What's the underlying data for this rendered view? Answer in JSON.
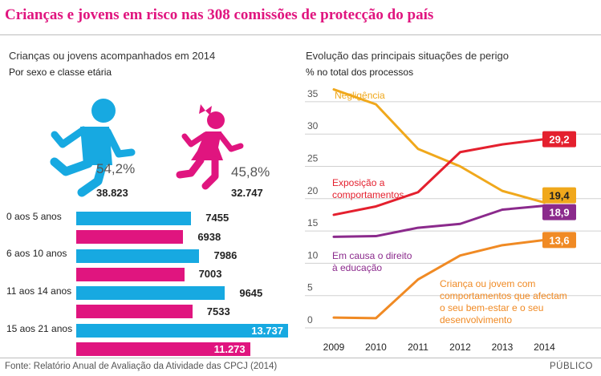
{
  "title": "Crianças e jovens em risco nas 308 comissões de protecção do país",
  "left": {
    "title": "Crianças ou jovens acompanhados em 2014",
    "subtitle": "Por sexo e classe etária",
    "boys": {
      "pct": "54,2%",
      "count": "38.823",
      "icon": "running-boy-icon"
    },
    "girls": {
      "pct": "45,8%",
      "count": "32.747",
      "icon": "running-girl-icon"
    },
    "colors": {
      "boys": "#17a9e1",
      "girls": "#e0157f"
    }
  },
  "right": {
    "title": "Evolução das principais situações de perigo",
    "subtitle": "% no total dos processos"
  },
  "source": "Fonte: Relatório Anual de Avaliação da Atividade das CPCJ (2014)",
  "brand": "PÚBLICO",
  "chart_data": [
    {
      "type": "bar",
      "title": "Crianças ou jovens acompanhados em 2014",
      "subtitle": "Por sexo e classe etária",
      "categories": [
        "0 aos 5 anos",
        "6 aos 10 anos",
        "11 aos 14 anos",
        "15 aos 21 anos"
      ],
      "series": [
        {
          "name": "Rapazes",
          "color": "#17a9e1",
          "values": [
            7455,
            7986,
            9645,
            13737
          ],
          "labels": [
            "7455",
            "7986",
            "9645",
            "13.737"
          ]
        },
        {
          "name": "Raparigas",
          "color": "#e0157f",
          "values": [
            6938,
            7003,
            7533,
            11273
          ],
          "labels": [
            "6938",
            "7003",
            "7533",
            "11.273"
          ]
        }
      ],
      "orientation": "horizontal",
      "xlim": [
        0,
        13737
      ]
    },
    {
      "type": "line",
      "title": "Evolução das principais situações de perigo",
      "ylabel": "% no total dos processos",
      "x": [
        2009,
        2010,
        2011,
        2012,
        2013,
        2014
      ],
      "x_ticks": [
        "2009",
        "2010",
        "2011",
        "2012",
        "2013",
        "2014"
      ],
      "ylim": [
        0,
        37
      ],
      "y_ticks": [
        "0",
        "5",
        "10",
        "15",
        "20",
        "25",
        "30",
        "35"
      ],
      "y_tick_values": [
        0,
        5,
        10,
        15,
        20,
        25,
        30,
        35
      ],
      "series": [
        {
          "name": "Negligência",
          "legend": [
            "Negligência"
          ],
          "color": "#f0a81c",
          "values": [
            36.9,
            34.6,
            27.7,
            25.0,
            21.2,
            19.4
          ],
          "end_label": "19,4"
        },
        {
          "name": "Exposição a comportamentos",
          "legend": [
            "Exposição a",
            "comportamentos"
          ],
          "color": "#e4202e",
          "values": [
            17.5,
            18.8,
            21.0,
            27.2,
            28.4,
            29.2
          ],
          "end_label": "29,2"
        },
        {
          "name": "Em causa o direito à educação",
          "legend": [
            "Em causa o direito",
            "à educação"
          ],
          "color": "#8b2a8c",
          "values": [
            14.1,
            14.2,
            15.5,
            16.1,
            18.3,
            18.9
          ],
          "end_label": "18,9"
        },
        {
          "name": "Criança ou jovem com comportamentos que afectam o seu bem-estar e o seu desenvolvimento",
          "legend": [
            "Criança ou jovem com",
            "comportamentos que afectam",
            "o seu bem-estar e o seu",
            "desenvolvimento"
          ],
          "color": "#f08a24",
          "values": [
            1.6,
            1.5,
            7.5,
            11.2,
            12.8,
            13.6
          ],
          "end_label": "13,6"
        }
      ]
    }
  ]
}
